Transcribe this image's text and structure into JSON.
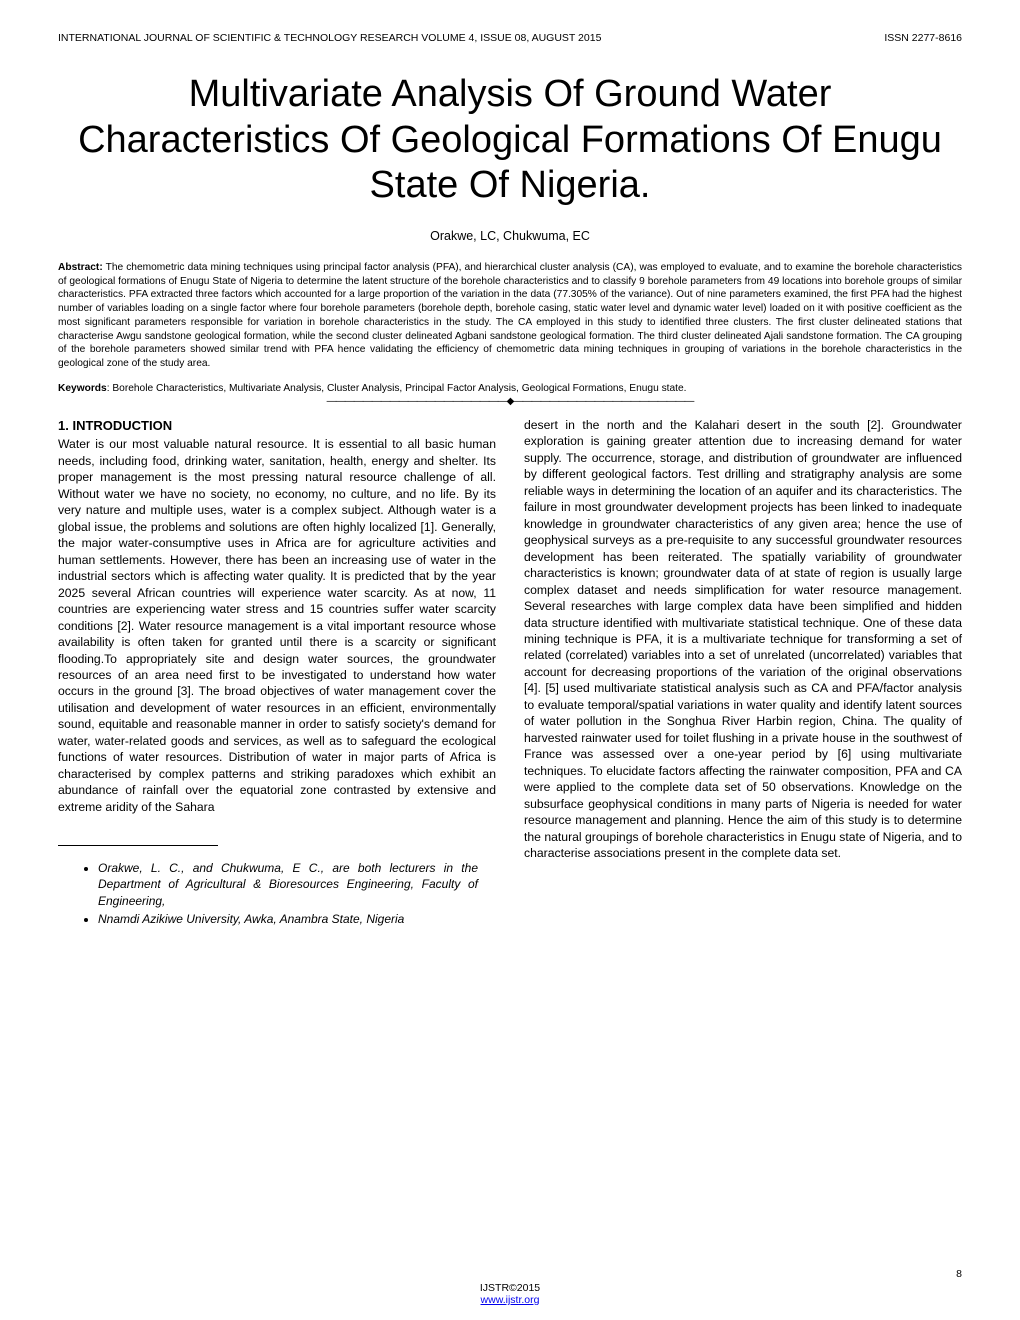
{
  "header": {
    "left": "INTERNATIONAL JOURNAL OF SCIENTIFIC & TECHNOLOGY RESEARCH VOLUME 4, ISSUE 08, AUGUST 2015",
    "right": "ISSN 2277-8616"
  },
  "title": "Multivariate Analysis Of Ground Water Characteristics Of Geological Formations Of Enugu State Of Nigeria.",
  "authors": "Orakwe, LC, Chukwuma, EC",
  "abstract": {
    "label": "Abstract:",
    "text": " The chemometric data mining techniques using principal factor analysis (PFA), and hierarchical cluster analysis (CA), was employed to evaluate, and to examine the borehole characteristics of geological formations of Enugu State of Nigeria to determine the latent structure of the borehole characteristics and to classify 9 borehole parameters from 49 locations into borehole groups of similar characteristics. PFA extracted three factors which accounted for a large proportion of the variation in the data (77.305% of the variance). Out of nine parameters examined, the first PFA had the highest number of variables loading on a single factor where four borehole parameters (borehole depth, borehole casing, static water level and dynamic water level) loaded on it with positive coefficient as the most significant parameters responsible for variation in borehole characteristics in the study. The CA employed in this study to identified three clusters. The first cluster delineated stations that characterise Awgu sandstone geological formation, while the second cluster delineated Agbani sandstone geological formation. The third cluster delineated Ajali sandstone formation. The CA grouping of the borehole parameters showed similar trend with PFA hence validating the efficiency of chemometric data mining techniques in grouping of variations in the borehole characteristics in the geological zone of the study area."
  },
  "keywords": {
    "label": "Keywords",
    "text": ": Borehole Characteristics, Multivariate Analysis, Cluster Analysis, Principal Factor Analysis, Geological Formations, Enugu state."
  },
  "separator": "————————————————————◆————————————————————",
  "intro": {
    "heading": "1. INTRODUCTION",
    "col1": "Water is our most valuable natural resource. It is essential to all basic human needs, including food, drinking water, sanitation, health, energy and shelter. Its proper management is the most pressing natural resource challenge of all. Without water we have no society, no economy, no culture, and no life. By its very nature and multiple uses, water is a complex subject. Although water is a global issue, the problems and solutions are often highly localized [1]. Generally, the major water-consumptive uses in Africa are for agriculture activities and human settlements. However, there has been an increasing use of water in the industrial sectors which is affecting water quality. It is predicted that by the year 2025 several African countries will experience water scarcity. As at now, 11 countries are experiencing water stress and 15 countries suffer water scarcity conditions [2]. Water resource management is a vital important resource whose availability is often taken for granted until there is a scarcity or significant flooding.To appropriately site and design water sources, the groundwater resources of an area need first to be investigated to understand how water occurs in the ground [3]. The broad objectives of water management cover the utilisation and development of water resources in an efficient, environmentally sound, equitable and reasonable manner in order to satisfy society's demand for water, water-related goods and services, as well as to safeguard the ecological functions of water resources. Distribution of water in major parts of Africa is characterised by complex patterns and striking paradoxes which exhibit an abundance of rainfall over the equatorial zone contrasted by extensive and extreme aridity of the Sahara",
    "col2": "desert in the north and the Kalahari desert in the south [2]. Groundwater exploration is gaining greater attention due to increasing demand for water supply. The occurrence, storage, and distribution of groundwater are influenced by different geological factors. Test drilling and stratigraphy analysis are some reliable ways in determining the location of an aquifer and its characteristics. The failure in most groundwater development projects has been linked to inadequate knowledge in groundwater characteristics of any given area; hence the use of geophysical surveys as a pre-requisite to any successful groundwater resources development has been reiterated. The spatially variability of groundwater characteristics is known; groundwater data of at state of region is usually large complex dataset and needs simplification for water resource management. Several researches with large complex data have been simplified and hidden data structure identified with multivariate statistical technique. One of these data mining technique is PFA, it is a multivariate technique for transforming a set of related (correlated) variables into a set of unrelated (uncorrelated) variables that account for decreasing proportions of the variation of the original observations [4]. [5] used multivariate statistical analysis such as CA and PFA/factor analysis to evaluate temporal/spatial variations in water quality and identify latent sources of water pollution in the Songhua River Harbin region, China. The quality of harvested rainwater used for toilet flushing in a private house in the southwest of France was assessed over a one-year period by [6] using multivariate techniques. To elucidate factors affecting the rainwater composition, PFA and CA were applied to the complete data set of 50 observations. Knowledge on the subsurface geophysical conditions in many parts of Nigeria is needed for water resource management and planning. Hence the aim of this study is to determine the natural groupings of borehole characteristics in Enugu state of Nigeria, and to characterise associations present in the complete data set."
  },
  "affiliations": [
    "Orakwe, L. C., and Chukwuma, E C., are both lecturers in the Department of Agricultural & Bioresources Engineering, Faculty of Engineering,",
    "Nnamdi Azikiwe University, Awka, Anambra State, Nigeria"
  ],
  "footer": {
    "copyright": "IJSTR©2015",
    "url": "www.ijstr.org"
  },
  "page_number": "8"
}
